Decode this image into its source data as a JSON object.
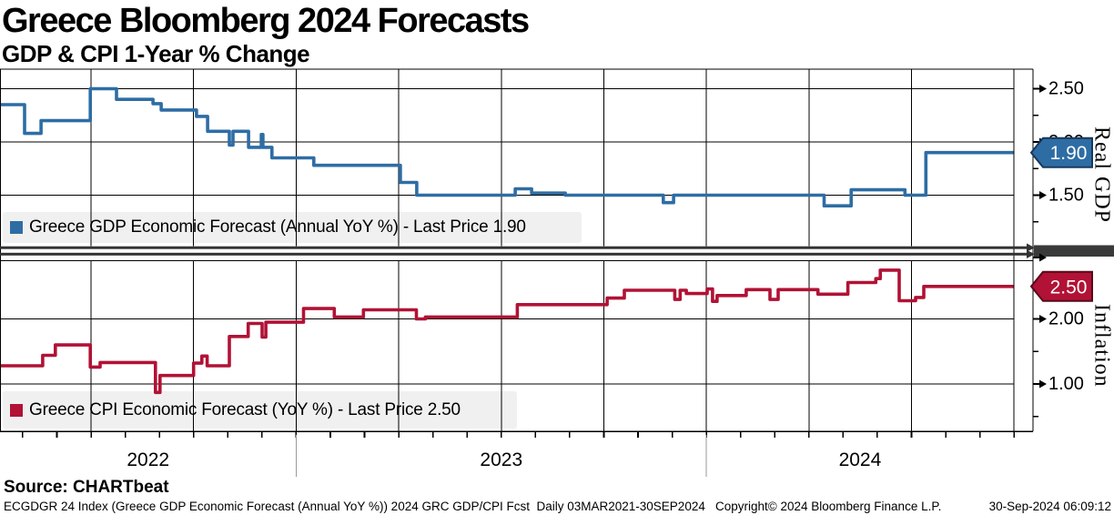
{
  "header": {
    "title": "Greece Bloomberg 2024 Forecasts",
    "subtitle": "GDP & CPI 1-Year % Change"
  },
  "source_label": "Source: CHARTbeat",
  "footer": {
    "left": "ECGDGR 24 Index (Greece GDP Economic Forecast (Annual YoY %)) 2024 GRC GDP/CPI Fcst  Daily 03MAR2021-30SEP2024",
    "copyright": "Copyright© 2024 Bloomberg Finance L.P.",
    "datetime": "30-Sep-2024 06:09:12"
  },
  "colors": {
    "gdp": "#2e6da4",
    "gdp_dark": "#16395c",
    "cpi": "#b11235",
    "cpi_dark": "#570a1b",
    "grid": "#000000",
    "legend_bg": "#f0f0f0",
    "divider": "#333333",
    "year_separator": "#999999",
    "badge_text": "#ffffff"
  },
  "xaxis": {
    "year_labels": [
      "2022",
      "2023",
      "2024"
    ],
    "range_decimal_years": [
      2022.278,
      2024.749
    ],
    "year_boundaries": [
      2023.0,
      2024.0
    ],
    "quarter_gridlines": [
      2022.5,
      2022.75,
      2023.0,
      2023.25,
      2023.5,
      2023.75,
      2024.0,
      2024.25,
      2024.5
    ]
  },
  "chart_data": [
    {
      "type": "line",
      "subtype": "step",
      "panel": "top",
      "axis_title": "Real GDP",
      "legend": "Greece GDP Economic Forecast (Annual YoY %) - Last Price 1.90",
      "series_name": "Greece GDP Economic Forecast (Annual YoY %)",
      "last_price": "1.90",
      "yticks_labeled": [
        2.5,
        2.0,
        1.5
      ],
      "yticks_minor": [
        2.25,
        1.75,
        1.25
      ],
      "points": [
        [
          2022.278,
          2.35
        ],
        [
          2022.338,
          2.08
        ],
        [
          2022.378,
          2.2
        ],
        [
          2022.498,
          2.5
        ],
        [
          2022.562,
          2.4
        ],
        [
          2022.651,
          2.36
        ],
        [
          2022.671,
          2.3
        ],
        [
          2022.757,
          2.24
        ],
        [
          2022.784,
          2.1
        ],
        [
          2022.837,
          1.97
        ],
        [
          2022.846,
          2.1
        ],
        [
          2022.884,
          1.95
        ],
        [
          2022.915,
          2.07
        ],
        [
          2022.919,
          1.95
        ],
        [
          2022.941,
          1.85
        ],
        [
          2023.043,
          1.78
        ],
        [
          2023.254,
          1.62
        ],
        [
          2023.294,
          1.5
        ],
        [
          2023.534,
          1.56
        ],
        [
          2023.574,
          1.52
        ],
        [
          2023.656,
          1.5
        ],
        [
          2023.895,
          1.43
        ],
        [
          2023.92,
          1.5
        ],
        [
          2024.287,
          1.4
        ],
        [
          2024.353,
          1.55
        ],
        [
          2024.484,
          1.5
        ],
        [
          2024.535,
          1.9
        ]
      ]
    },
    {
      "type": "line",
      "subtype": "step",
      "panel": "bottom",
      "axis_title": "Inflation",
      "legend": "Greece CPI Economic Forecast (YoY %) - Last Price 2.50",
      "series_name": "Greece CPI Economic Forecast (YoY %)",
      "last_price": "2.50",
      "yticks_labeled": [
        2.0,
        1.0
      ],
      "yticks_minor": [
        1.5,
        0.5
      ],
      "points": [
        [
          2022.278,
          1.28
        ],
        [
          2022.382,
          1.44
        ],
        [
          2022.413,
          1.6
        ],
        [
          2022.498,
          1.26
        ],
        [
          2022.522,
          1.33
        ],
        [
          2022.657,
          0.87
        ],
        [
          2022.668,
          1.13
        ],
        [
          2022.75,
          1.32
        ],
        [
          2022.77,
          1.43
        ],
        [
          2022.783,
          1.28
        ],
        [
          2022.837,
          1.73
        ],
        [
          2022.883,
          1.93
        ],
        [
          2022.917,
          1.72
        ],
        [
          2022.926,
          1.95
        ],
        [
          2023.018,
          2.16
        ],
        [
          2023.093,
          2.03
        ],
        [
          2023.164,
          2.14
        ],
        [
          2023.293,
          2.0
        ],
        [
          2023.315,
          2.03
        ],
        [
          2023.539,
          2.22
        ],
        [
          2023.758,
          2.32
        ],
        [
          2023.8,
          2.44
        ],
        [
          2023.923,
          2.3
        ],
        [
          2023.936,
          2.44
        ],
        [
          2023.951,
          2.39
        ],
        [
          2024.002,
          2.46
        ],
        [
          2024.015,
          2.27
        ],
        [
          2024.026,
          2.36
        ],
        [
          2024.097,
          2.45
        ],
        [
          2024.155,
          2.3
        ],
        [
          2024.175,
          2.45
        ],
        [
          2024.272,
          2.38
        ],
        [
          2024.345,
          2.56
        ],
        [
          2024.413,
          2.62
        ],
        [
          2024.424,
          2.75
        ],
        [
          2024.47,
          2.28
        ],
        [
          2024.51,
          2.33
        ],
        [
          2024.53,
          2.5
        ]
      ]
    }
  ]
}
